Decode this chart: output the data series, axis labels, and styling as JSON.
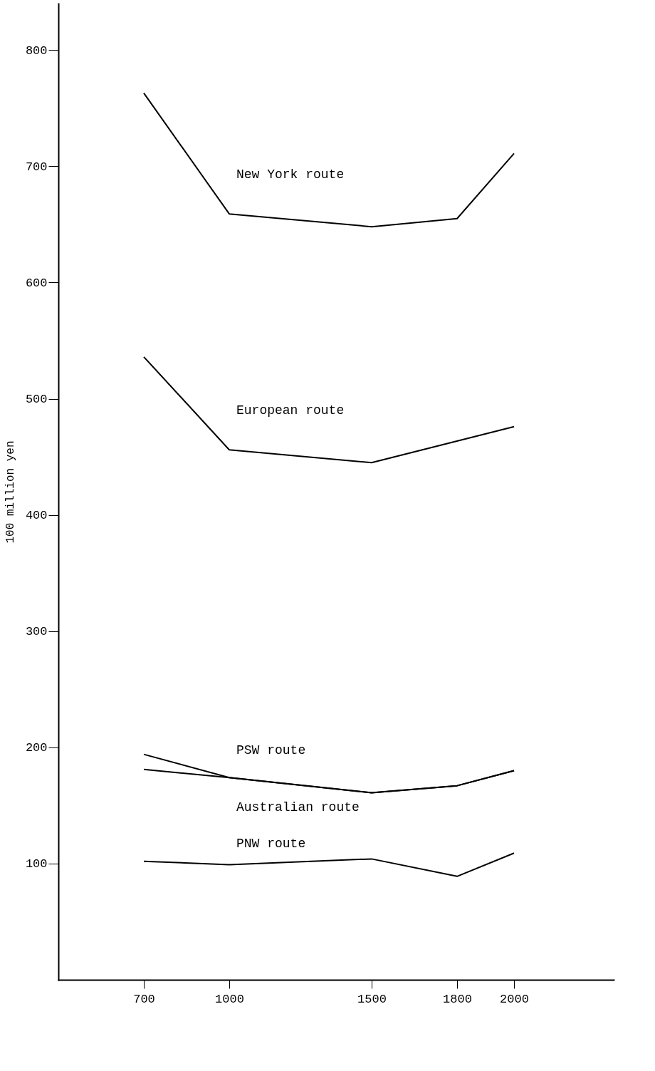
{
  "chart_data": {
    "type": "line",
    "ylabel": "100 million yen",
    "series": [
      {
        "name": "New York route",
        "color": "#000000",
        "x": [
          700,
          1000,
          1500,
          1800,
          2000
        ],
        "values": [
          763,
          659,
          648,
          655,
          711
        ]
      },
      {
        "name": "European route",
        "color": "#000000",
        "x": [
          700,
          1000,
          1500,
          2000
        ],
        "values": [
          536,
          456,
          445,
          476
        ]
      },
      {
        "name": "PSW route",
        "color": "#000000",
        "x": [
          700,
          1000,
          1500,
          1800,
          2000
        ],
        "values": [
          194,
          174,
          161,
          167,
          180
        ]
      },
      {
        "name": "Australian route",
        "color": "#000000",
        "x": [
          700,
          1000,
          1500,
          1800,
          2000
        ],
        "values": [
          181,
          174,
          161,
          167,
          180
        ]
      },
      {
        "name": "PNW route",
        "color": "#000000",
        "x": [
          700,
          1000,
          1500,
          1800,
          2000
        ],
        "values": [
          102,
          99,
          104,
          89,
          109
        ]
      }
    ],
    "xlim": [
      400,
      2350
    ],
    "ylim": [
      0,
      840
    ],
    "xticks": [
      700,
      1000,
      1500,
      1800,
      2000
    ],
    "yticks": [
      100,
      200,
      300,
      400,
      500,
      600,
      700,
      800
    ],
    "marker": "none",
    "line_style": "solid"
  }
}
